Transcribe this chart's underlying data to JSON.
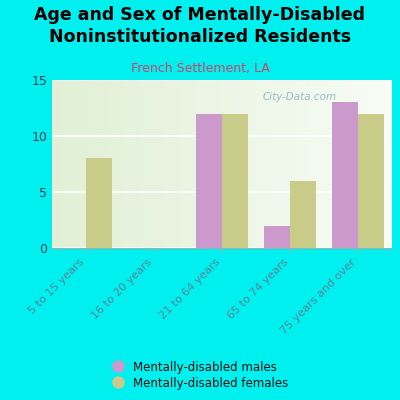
{
  "title": "Age and Sex of Mentally-Disabled\nNoninstitutionalized Residents",
  "subtitle": "French Settlement, LA",
  "subtitle_color": "#cc4466",
  "categories": [
    "5 to 15 years",
    "16 to 20 years",
    "21 to 64 years",
    "65 to 74 years",
    "75 years and over"
  ],
  "males": [
    0,
    0,
    12,
    2,
    13
  ],
  "females": [
    8,
    0,
    12,
    6,
    12
  ],
  "male_color": "#cc99cc",
  "female_color": "#c8cc88",
  "background_color": "#00efef",
  "chart_bg_color": "#e8f0dc",
  "ylim": [
    0,
    15
  ],
  "yticks": [
    0,
    5,
    10,
    15
  ],
  "bar_width": 0.38,
  "watermark": "City-Data.com",
  "watermark_color": "#8ab0c0",
  "legend_male": "Mentally-disabled males",
  "legend_female": "Mentally-disabled females",
  "title_fontsize": 12.5,
  "subtitle_fontsize": 9,
  "tick_label_color": "#558899",
  "tick_label_fontsize": 8
}
